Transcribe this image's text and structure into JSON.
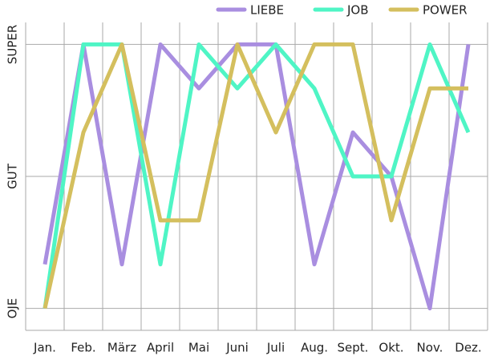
{
  "chart_data": {
    "type": "line",
    "categories": [
      "Jan.",
      "Feb.",
      "März",
      "April",
      "Mai",
      "Juni",
      "Juli",
      "Aug.",
      "Sept.",
      "Okt.",
      "Nov.",
      "Dez."
    ],
    "series": [
      {
        "name": "LIEBE",
        "color": "#a98ee0",
        "values": [
          2,
          7,
          2,
          7,
          6,
          7,
          7,
          2,
          5,
          4,
          1,
          7
        ]
      },
      {
        "name": "JOB",
        "color": "#4ff5c5",
        "values": [
          1,
          7,
          7,
          2,
          7,
          6,
          7,
          6,
          4,
          4,
          7,
          5
        ]
      },
      {
        "name": "POWER",
        "color": "#d4bf5e",
        "values": [
          1,
          5,
          7,
          3,
          3,
          7,
          5,
          7,
          7,
          3,
          6,
          6
        ]
      }
    ],
    "ylim": [
      0.5,
      7.5
    ],
    "yticks": [
      {
        "value": 1,
        "label": "OJE"
      },
      {
        "value": 4,
        "label": "GUT"
      },
      {
        "value": 7,
        "label": "SUPER"
      }
    ],
    "grid": true
  }
}
